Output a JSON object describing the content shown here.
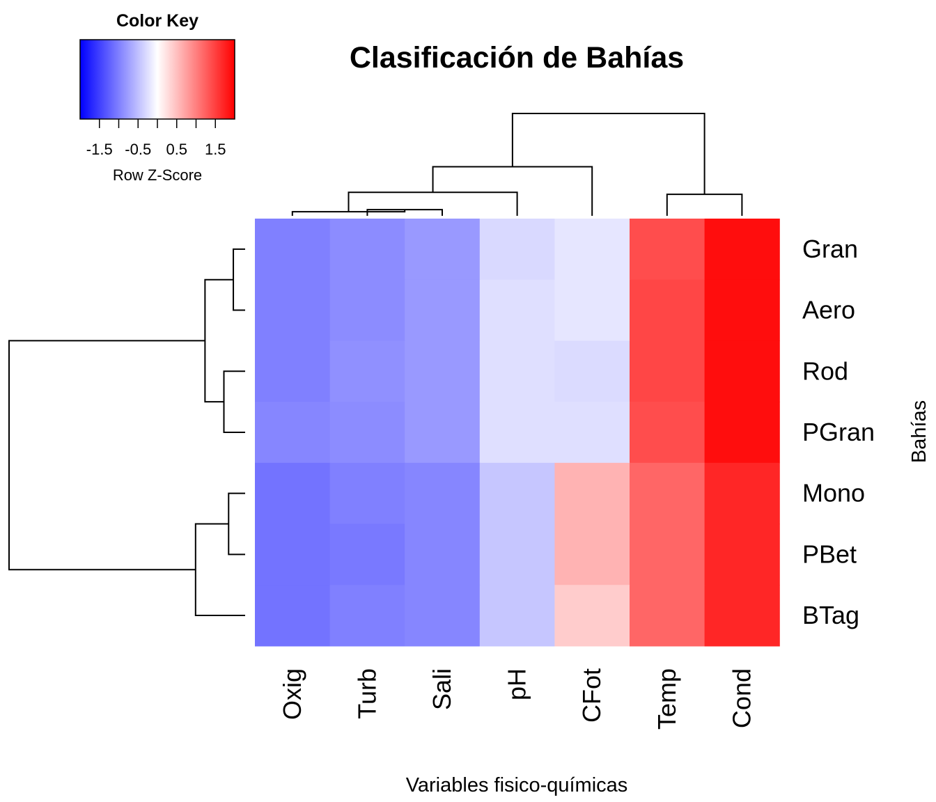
{
  "chart_data": {
    "type": "heatmap",
    "title": "Clasificación de Bahías",
    "xlabel": "Variables fisico-químicas",
    "ylabel": "Bahías",
    "columns": [
      "Oxig",
      "Turb",
      "Sali",
      "pH",
      "CFot",
      "Temp",
      "Cond"
    ],
    "rows": [
      "Gran",
      "Aero",
      "Rod",
      "PGran",
      "Mono",
      "PBet",
      "BTag"
    ],
    "values": [
      [
        -1.0,
        -0.9,
        -0.8,
        -0.3,
        -0.2,
        1.4,
        1.9
      ],
      [
        -1.0,
        -0.9,
        -0.8,
        -0.25,
        -0.2,
        1.45,
        1.9
      ],
      [
        -1.0,
        -0.87,
        -0.8,
        -0.25,
        -0.28,
        1.45,
        1.9
      ],
      [
        -0.95,
        -0.9,
        -0.8,
        -0.25,
        -0.25,
        1.4,
        1.9
      ],
      [
        -1.1,
        -1.0,
        -0.95,
        -0.45,
        0.6,
        1.2,
        1.7
      ],
      [
        -1.1,
        -1.05,
        -0.95,
        -0.45,
        0.6,
        1.2,
        1.7
      ],
      [
        -1.1,
        -1.0,
        -0.95,
        -0.45,
        0.4,
        1.2,
        1.7
      ]
    ],
    "color_scale": {
      "min": -2.0,
      "max": 2.0,
      "low": "#0000ff",
      "mid": "#ffffff",
      "high": "#ff0000"
    },
    "color_key": {
      "title": "Color Key",
      "label": "Row Z-Score",
      "tick_labels": [
        "-1.5",
        "-0.5",
        "0.5",
        "1.5"
      ],
      "tick_values": [
        -1.5,
        -1.0,
        -0.5,
        0.0,
        0.5,
        1.0,
        1.5
      ]
    },
    "row_dendrogram": {
      "heights": {
        "Gran-Aero": 0.05,
        "Rod-PGran": 0.09,
        "Gran-Aero-Rod-PGran": 0.17,
        "Mono-PBet": 0.07,
        "Mono-PBet-BTag": 0.21,
        "all": 1.0
      }
    },
    "col_dendrogram": {
      "heights": {
        "Turb-Sali": 0.06,
        "Oxig-Turb-Sali": 0.04,
        "grp3-pH": 0.23,
        "grp4-CFot": 0.48,
        "Temp-Cond": 0.21,
        "all": 1.0
      }
    }
  }
}
